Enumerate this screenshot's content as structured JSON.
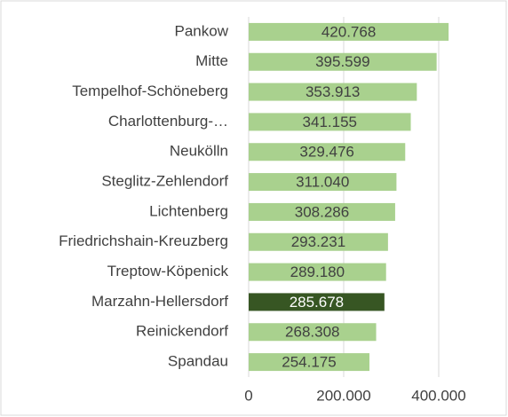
{
  "chart_data": {
    "type": "bar",
    "orientation": "horizontal",
    "categories": [
      "Pankow",
      "Mitte",
      "Tempelhof-Schöneberg",
      "Charlottenburg-…",
      "Neukölln",
      "Steglitz-Zehlendorf",
      "Lichtenberg",
      "Friedrichshain-Kreuzberg",
      "Treptow-Köpenick",
      "Marzahn-Hellersdorf",
      "Reinickendorf",
      "Spandau"
    ],
    "values": [
      420768,
      395599,
      353913,
      341155,
      329476,
      311040,
      308286,
      293231,
      289180,
      285678,
      268308,
      254175
    ],
    "value_labels": [
      "420.768",
      "395.599",
      "353.913",
      "341.155",
      "329.476",
      "311.040",
      "308.286",
      "293.231",
      "289.180",
      "285.678",
      "268.308",
      "254.175"
    ],
    "colors": [
      "#a9d18e",
      "#a9d18e",
      "#a9d18e",
      "#a9d18e",
      "#a9d18e",
      "#a9d18e",
      "#a9d18e",
      "#a9d18e",
      "#a9d18e",
      "#375623",
      "#a9d18e",
      "#a9d18e"
    ],
    "xlim": [
      0,
      500000
    ],
    "xticks": [
      0,
      {
        "value": 200000,
        "label": "200.000"
      },
      {
        "value": 400000,
        "label": "400.000"
      }
    ],
    "grid": true
  }
}
